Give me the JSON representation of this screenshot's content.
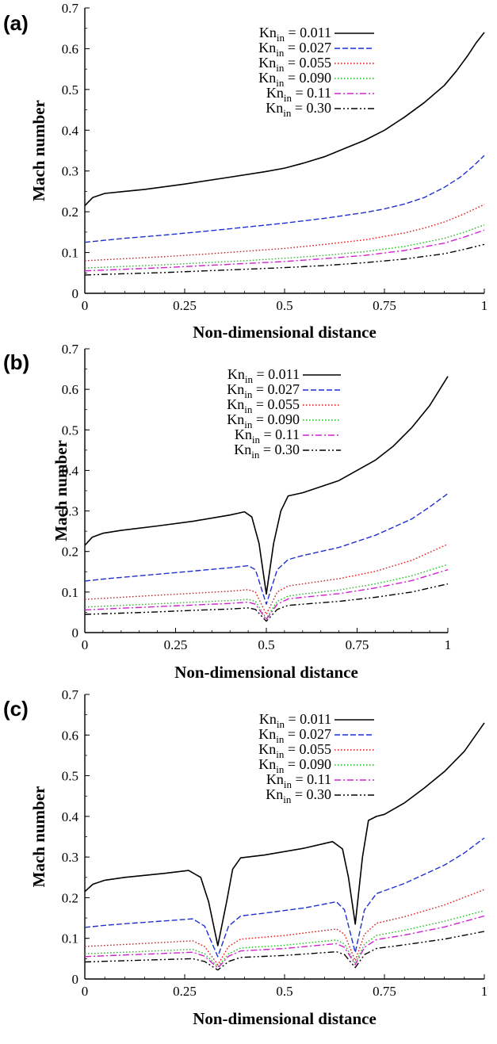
{
  "chart_data": [
    {
      "panel_label": "(a)",
      "type": "line",
      "xlabel": "Non-dimensional distance",
      "ylabel": "Mach number",
      "xlim": [
        0,
        1
      ],
      "ylim": [
        0,
        0.7
      ],
      "xticks": [
        "0",
        "0.25",
        "0.5",
        "0.75",
        "1"
      ],
      "yticks": [
        "0",
        "0.1",
        "0.2",
        "0.3",
        "0.4",
        "0.5",
        "0.6",
        "0.7"
      ],
      "legend_position": "top-right",
      "series": [
        {
          "name": "0.011",
          "color": "#000000",
          "style": "solid",
          "x": [
            0,
            0.02,
            0.05,
            0.1,
            0.15,
            0.25,
            0.35,
            0.45,
            0.5,
            0.55,
            0.6,
            0.65,
            0.7,
            0.75,
            0.8,
            0.85,
            0.9,
            0.93,
            0.96,
            0.98,
            1.0
          ],
          "y": [
            0.215,
            0.235,
            0.245,
            0.25,
            0.255,
            0.268,
            0.283,
            0.298,
            0.307,
            0.32,
            0.335,
            0.355,
            0.375,
            0.4,
            0.432,
            0.468,
            0.51,
            0.545,
            0.585,
            0.615,
            0.64
          ]
        },
        {
          "name": "0.027",
          "color": "#1f2fd0",
          "style": "dashed",
          "x": [
            0,
            0.05,
            0.1,
            0.2,
            0.3,
            0.4,
            0.5,
            0.6,
            0.7,
            0.75,
            0.8,
            0.85,
            0.9,
            0.94,
            0.97,
            1.0
          ],
          "y": [
            0.125,
            0.13,
            0.135,
            0.143,
            0.152,
            0.162,
            0.172,
            0.184,
            0.198,
            0.207,
            0.219,
            0.235,
            0.26,
            0.285,
            0.31,
            0.338
          ]
        },
        {
          "name": "0.055",
          "color": "#e01818",
          "style": "dotted",
          "x": [
            0,
            0.1,
            0.2,
            0.3,
            0.4,
            0.5,
            0.6,
            0.7,
            0.8,
            0.85,
            0.9,
            0.95,
            1.0
          ],
          "y": [
            0.08,
            0.085,
            0.09,
            0.096,
            0.103,
            0.11,
            0.12,
            0.131,
            0.148,
            0.16,
            0.175,
            0.195,
            0.218
          ]
        },
        {
          "name": "0.090",
          "color": "#22c022",
          "style": "dotted",
          "x": [
            0,
            0.1,
            0.2,
            0.3,
            0.4,
            0.5,
            0.6,
            0.7,
            0.8,
            0.9,
            0.95,
            1.0
          ],
          "y": [
            0.062,
            0.066,
            0.07,
            0.075,
            0.08,
            0.086,
            0.093,
            0.102,
            0.115,
            0.135,
            0.15,
            0.168
          ]
        },
        {
          "name": "0.11",
          "color": "#d020d0",
          "style": "dashdot",
          "x": [
            0,
            0.1,
            0.2,
            0.3,
            0.4,
            0.5,
            0.6,
            0.7,
            0.8,
            0.9,
            0.95,
            1.0
          ],
          "y": [
            0.055,
            0.059,
            0.063,
            0.068,
            0.073,
            0.078,
            0.085,
            0.093,
            0.105,
            0.123,
            0.138,
            0.155
          ]
        },
        {
          "name": "0.30",
          "color": "#000000",
          "style": "dashdotdot",
          "x": [
            0,
            0.1,
            0.2,
            0.3,
            0.4,
            0.5,
            0.6,
            0.7,
            0.8,
            0.9,
            0.95,
            1.0
          ],
          "y": [
            0.045,
            0.048,
            0.051,
            0.055,
            0.059,
            0.063,
            0.068,
            0.075,
            0.084,
            0.097,
            0.108,
            0.12
          ]
        }
      ]
    },
    {
      "panel_label": "(b)",
      "type": "line",
      "xlabel": "Non-dimensional distance",
      "ylabel": "Mach number",
      "xlim": [
        0,
        1
      ],
      "ylim": [
        0,
        0.7
      ],
      "xticks": [
        "0",
        "0.25",
        "0.5",
        "0.75",
        "1"
      ],
      "yticks": [
        "0",
        "0.1",
        "0.2",
        "0.3",
        "0.4",
        "0.5",
        "0.6",
        "0.7"
      ],
      "legend_position": "top-right",
      "series": [
        {
          "name": "0.011",
          "color": "#000000",
          "style": "solid",
          "x": [
            0,
            0.02,
            0.05,
            0.1,
            0.2,
            0.3,
            0.4,
            0.44,
            0.46,
            0.48,
            0.5,
            0.52,
            0.54,
            0.56,
            0.6,
            0.7,
            0.8,
            0.85,
            0.9,
            0.95,
            1.0
          ],
          "y": [
            0.215,
            0.235,
            0.245,
            0.252,
            0.263,
            0.275,
            0.29,
            0.298,
            0.285,
            0.22,
            0.095,
            0.22,
            0.3,
            0.337,
            0.345,
            0.375,
            0.425,
            0.46,
            0.505,
            0.56,
            0.632
          ]
        },
        {
          "name": "0.027",
          "color": "#1f2fd0",
          "style": "dashed",
          "x": [
            0,
            0.05,
            0.1,
            0.2,
            0.3,
            0.4,
            0.45,
            0.47,
            0.5,
            0.53,
            0.56,
            0.6,
            0.7,
            0.8,
            0.9,
            0.95,
            1.0
          ],
          "y": [
            0.127,
            0.132,
            0.136,
            0.144,
            0.152,
            0.16,
            0.165,
            0.155,
            0.07,
            0.155,
            0.18,
            0.19,
            0.21,
            0.24,
            0.28,
            0.31,
            0.343
          ]
        },
        {
          "name": "0.055",
          "color": "#e01818",
          "style": "dotted",
          "x": [
            0,
            0.1,
            0.2,
            0.3,
            0.4,
            0.45,
            0.47,
            0.5,
            0.53,
            0.56,
            0.6,
            0.7,
            0.8,
            0.9,
            1.0
          ],
          "y": [
            0.082,
            0.087,
            0.092,
            0.097,
            0.102,
            0.106,
            0.1,
            0.045,
            0.1,
            0.115,
            0.12,
            0.133,
            0.151,
            0.178,
            0.218
          ]
        },
        {
          "name": "0.090",
          "color": "#22c022",
          "style": "dotted",
          "x": [
            0,
            0.1,
            0.2,
            0.3,
            0.4,
            0.45,
            0.47,
            0.5,
            0.53,
            0.56,
            0.6,
            0.7,
            0.8,
            0.9,
            1.0
          ],
          "y": [
            0.063,
            0.067,
            0.071,
            0.075,
            0.079,
            0.082,
            0.077,
            0.035,
            0.077,
            0.09,
            0.095,
            0.105,
            0.12,
            0.14,
            0.168
          ]
        },
        {
          "name": "0.11",
          "color": "#d020d0",
          "style": "dashdot",
          "x": [
            0,
            0.1,
            0.2,
            0.3,
            0.4,
            0.45,
            0.47,
            0.5,
            0.53,
            0.56,
            0.6,
            0.7,
            0.8,
            0.9,
            1.0
          ],
          "y": [
            0.056,
            0.06,
            0.064,
            0.068,
            0.072,
            0.075,
            0.07,
            0.032,
            0.07,
            0.083,
            0.087,
            0.096,
            0.11,
            0.128,
            0.155
          ]
        },
        {
          "name": "0.30",
          "color": "#000000",
          "style": "dashdotdot",
          "x": [
            0,
            0.1,
            0.2,
            0.3,
            0.4,
            0.45,
            0.47,
            0.5,
            0.53,
            0.56,
            0.6,
            0.7,
            0.8,
            0.9,
            1.0
          ],
          "y": [
            0.045,
            0.048,
            0.051,
            0.055,
            0.058,
            0.061,
            0.057,
            0.028,
            0.057,
            0.067,
            0.07,
            0.077,
            0.087,
            0.1,
            0.12
          ]
        }
      ]
    },
    {
      "panel_label": "(c)",
      "type": "line",
      "xlabel": "Non-dimensional distance",
      "ylabel": "Mach number",
      "xlim": [
        0,
        1
      ],
      "ylim": [
        0,
        0.7
      ],
      "xticks": [
        "0",
        "0.25",
        "0.5",
        "0.75",
        "1"
      ],
      "yticks": [
        "0",
        "0.1",
        "0.2",
        "0.3",
        "0.4",
        "0.5",
        "0.6",
        "0.7"
      ],
      "legend_position": "top-right",
      "series": [
        {
          "name": "0.011",
          "color": "#000000",
          "style": "solid",
          "x": [
            0,
            0.02,
            0.05,
            0.1,
            0.2,
            0.26,
            0.29,
            0.31,
            0.333,
            0.355,
            0.37,
            0.39,
            0.45,
            0.55,
            0.62,
            0.645,
            0.66,
            0.677,
            0.695,
            0.71,
            0.73,
            0.75,
            0.8,
            0.85,
            0.9,
            0.95,
            1.0
          ],
          "y": [
            0.215,
            0.233,
            0.243,
            0.25,
            0.26,
            0.267,
            0.25,
            0.19,
            0.082,
            0.19,
            0.27,
            0.298,
            0.305,
            0.322,
            0.338,
            0.32,
            0.25,
            0.135,
            0.3,
            0.39,
            0.4,
            0.405,
            0.433,
            0.47,
            0.51,
            0.56,
            0.63
          ]
        },
        {
          "name": "0.027",
          "color": "#1f2fd0",
          "style": "dashed",
          "x": [
            0,
            0.05,
            0.1,
            0.2,
            0.27,
            0.3,
            0.333,
            0.36,
            0.39,
            0.45,
            0.55,
            0.63,
            0.65,
            0.677,
            0.7,
            0.73,
            0.8,
            0.9,
            0.95,
            1.0
          ],
          "y": [
            0.127,
            0.132,
            0.136,
            0.143,
            0.148,
            0.13,
            0.055,
            0.13,
            0.155,
            0.162,
            0.175,
            0.19,
            0.17,
            0.065,
            0.17,
            0.21,
            0.235,
            0.28,
            0.31,
            0.347
          ]
        },
        {
          "name": "0.055",
          "color": "#e01818",
          "style": "dotted",
          "x": [
            0,
            0.1,
            0.2,
            0.27,
            0.3,
            0.333,
            0.36,
            0.39,
            0.5,
            0.63,
            0.65,
            0.677,
            0.7,
            0.73,
            0.8,
            0.9,
            1.0
          ],
          "y": [
            0.08,
            0.085,
            0.09,
            0.094,
            0.08,
            0.035,
            0.08,
            0.098,
            0.107,
            0.123,
            0.11,
            0.045,
            0.11,
            0.137,
            0.153,
            0.182,
            0.22
          ]
        },
        {
          "name": "0.090",
          "color": "#22c022",
          "style": "dotted",
          "x": [
            0,
            0.1,
            0.2,
            0.27,
            0.3,
            0.333,
            0.36,
            0.39,
            0.5,
            0.63,
            0.65,
            0.677,
            0.7,
            0.73,
            0.8,
            0.9,
            1.0
          ],
          "y": [
            0.062,
            0.066,
            0.07,
            0.073,
            0.062,
            0.03,
            0.062,
            0.076,
            0.083,
            0.096,
            0.086,
            0.038,
            0.086,
            0.107,
            0.12,
            0.142,
            0.168
          ]
        },
        {
          "name": "0.11",
          "color": "#d020d0",
          "style": "dashdot",
          "x": [
            0,
            0.1,
            0.2,
            0.27,
            0.3,
            0.333,
            0.36,
            0.39,
            0.5,
            0.63,
            0.65,
            0.677,
            0.7,
            0.73,
            0.8,
            0.9,
            1.0
          ],
          "y": [
            0.055,
            0.059,
            0.063,
            0.066,
            0.056,
            0.027,
            0.056,
            0.069,
            0.075,
            0.087,
            0.078,
            0.035,
            0.078,
            0.097,
            0.108,
            0.128,
            0.155
          ]
        },
        {
          "name": "0.30",
          "color": "#000000",
          "style": "dashdotdot",
          "x": [
            0,
            0.1,
            0.2,
            0.27,
            0.3,
            0.333,
            0.36,
            0.39,
            0.5,
            0.63,
            0.65,
            0.677,
            0.7,
            0.73,
            0.8,
            0.9,
            1.0
          ],
          "y": [
            0.042,
            0.045,
            0.048,
            0.05,
            0.043,
            0.022,
            0.043,
            0.053,
            0.058,
            0.067,
            0.06,
            0.028,
            0.06,
            0.075,
            0.084,
            0.098,
            0.117
          ]
        }
      ]
    }
  ],
  "legend_prefix": "Kn",
  "legend_subscript": "in",
  "legend_equals": " = "
}
